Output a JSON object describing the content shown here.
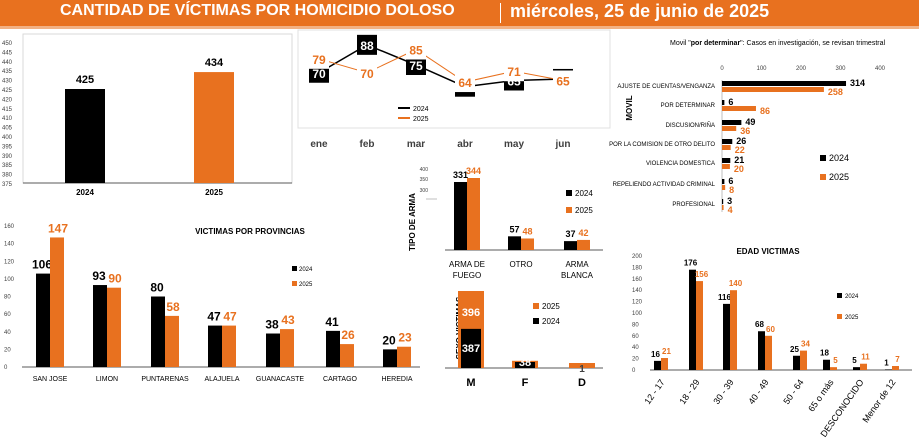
{
  "header": {
    "title": "CANTIDAD DE VÍCTIMAS POR HOMICIDIO DOLOSO",
    "date": "miércoles, 25 de junio de 2025"
  },
  "colors": {
    "y2024": "#000000",
    "y2025": "#E8711F",
    "header": "#E8711F",
    "axis": "#595959"
  },
  "chart_data": [
    {
      "id": "annual",
      "type": "bar",
      "categories": [
        "2024",
        "2025"
      ],
      "values": [
        425,
        434
      ],
      "ylim": [
        375,
        450
      ],
      "yticks": [
        "450",
        "445",
        "440",
        "435",
        "430",
        "425",
        "420",
        "415",
        "410",
        "405",
        "400",
        "395",
        "390",
        "385",
        "380",
        "375"
      ]
    },
    {
      "id": "monthly",
      "type": "line",
      "categories": [
        "ene",
        "feb",
        "mar",
        "abr",
        "may",
        "jun"
      ],
      "series": [
        {
          "name": "2024",
          "values": [
            70,
            88,
            75,
            61,
            65,
            66
          ]
        },
        {
          "name": "2025",
          "values": [
            79,
            70,
            85,
            64,
            71,
            65
          ]
        }
      ]
    },
    {
      "id": "movil",
      "type": "bar",
      "orientation": "horizontal",
      "title": "Movil \"por determinar\": Casos en investigación, se revisan trimestral",
      "title_prefix": "Movil \"",
      "title_bold": "por determinar",
      "title_suffix": "\": Casos en investigación, se revisan trimestral",
      "ylabel": "MOVIL",
      "xlim": [
        0,
        400
      ],
      "xticks": [
        "0",
        "100",
        "200",
        "300",
        "400"
      ],
      "categories": [
        "AJUSTE DE CUENTAS/VENGANZA",
        "POR DETERMINAR",
        "DISCUSION/RIÑA",
        "POR LA COMISION DE OTRO DELITO",
        "VIOLENCIA DOMESTICA",
        "REPELIENDO ACTIVIDAD CRIMINAL",
        "PROFESIONAL"
      ],
      "series": [
        {
          "name": "2024",
          "values": [
            314,
            6,
            49,
            26,
            21,
            6,
            3
          ]
        },
        {
          "name": "2025",
          "values": [
            258,
            86,
            36,
            22,
            20,
            8,
            4
          ]
        }
      ]
    },
    {
      "id": "provincias",
      "type": "bar",
      "title": "VICTIMAS POR PROVINCIAS",
      "ylim": [
        0,
        160
      ],
      "yticks": [
        "0",
        "20",
        "40",
        "60",
        "80",
        "100",
        "120",
        "140",
        "160"
      ],
      "categories": [
        "SAN JOSE",
        "LIMON",
        "PUNTARENAS",
        "ALAJUELA",
        "GUANACASTE",
        "CARTAGO",
        "HEREDIA"
      ],
      "series": [
        {
          "name": "2024",
          "values": [
            106,
            93,
            80,
            47,
            38,
            41,
            20
          ]
        },
        {
          "name": "2025",
          "values": [
            147,
            90,
            58,
            47,
            43,
            26,
            23
          ]
        }
      ]
    },
    {
      "id": "arma",
      "type": "bar",
      "ylabel": "TIPO DE ARMA",
      "ylim": [
        0,
        400
      ],
      "yticks": [
        "300",
        "350",
        "400"
      ],
      "categories": [
        "ARMA DE FUEGO",
        "OTRO",
        "ARMA BLANCA"
      ],
      "category_lines": [
        [
          "ARMA DE",
          "FUEGO"
        ],
        [
          "OTRO"
        ],
        [
          "ARMA",
          "BLANCA"
        ]
      ],
      "series": [
        {
          "name": "2024",
          "values": [
            331,
            57,
            37
          ]
        },
        {
          "name": "2025",
          "values": [
            344,
            48,
            42
          ]
        }
      ]
    },
    {
      "id": "sexo",
      "type": "bar",
      "ylabel": "SEXO VICTIMAS",
      "categories": [
        "M",
        "F",
        "D"
      ],
      "series": [
        {
          "name": "2024",
          "values": [
            387,
            38,
            null
          ]
        },
        {
          "name": "2025",
          "values": [
            396,
            37,
            1
          ]
        }
      ]
    },
    {
      "id": "edad",
      "type": "bar",
      "title": "EDAD VICTIMAS",
      "ylim": [
        0,
        200
      ],
      "yticks": [
        "0",
        "20",
        "40",
        "60",
        "80",
        "100",
        "120",
        "140",
        "160",
        "180",
        "200"
      ],
      "categories": [
        "12 - 17",
        "18 - 29",
        "30 - 39",
        "40 - 49",
        "50 - 64",
        "65 o más",
        "DESCONOCIDO",
        "Menor de 12"
      ],
      "series": [
        {
          "name": "2024",
          "values": [
            16,
            176,
            116,
            68,
            25,
            18,
            5,
            1
          ]
        },
        {
          "name": "2025",
          "values": [
            21,
            156,
            140,
            60,
            34,
            5,
            11,
            7
          ]
        }
      ]
    }
  ]
}
